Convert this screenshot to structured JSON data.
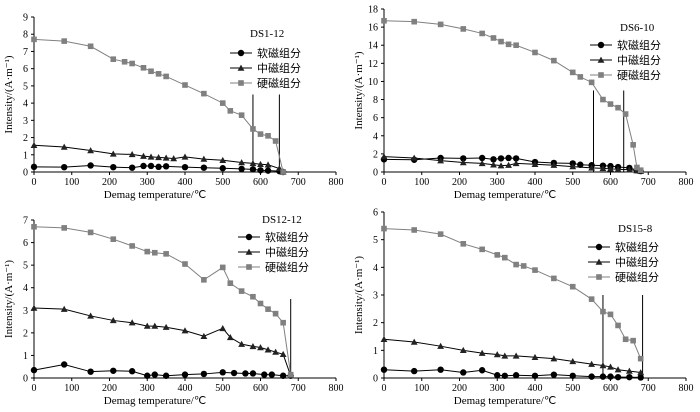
{
  "chart_data": [
    {
      "type": "line",
      "title": "DS1-12",
      "xlabel": "Demag temperature/℃",
      "ylabel": "Intensity/(A·m⁻¹)",
      "xlim": [
        0,
        800
      ],
      "ylim": [
        0,
        9
      ],
      "xticks": [
        "0",
        "100",
        "200",
        "300",
        "400",
        "500",
        "600",
        "700",
        "800"
      ],
      "yticks": [
        "0",
        "1",
        "2",
        "3",
        "4",
        "5",
        "6",
        "7",
        "8",
        "9"
      ],
      "markers_vlines": [
        580,
        650
      ],
      "series": [
        {
          "name": "软磁组分",
          "marker": "circle",
          "x": [
            0,
            80,
            150,
            210,
            260,
            290,
            310,
            330,
            350,
            400,
            450,
            500,
            550,
            580,
            600,
            620,
            650,
            660
          ],
          "y": [
            0.3,
            0.28,
            0.38,
            0.28,
            0.25,
            0.35,
            0.35,
            0.3,
            0.33,
            0.28,
            0.25,
            0.22,
            0.18,
            0.15,
            0.1,
            0.08,
            0.05,
            0
          ]
        },
        {
          "name": "中磁组分",
          "marker": "triangle",
          "x": [
            0,
            80,
            150,
            210,
            260,
            290,
            310,
            330,
            350,
            370,
            400,
            450,
            500,
            550,
            580,
            600,
            620,
            650,
            660
          ],
          "y": [
            1.55,
            1.45,
            1.25,
            1.05,
            1.02,
            0.92,
            0.88,
            0.85,
            0.82,
            0.78,
            0.88,
            0.75,
            0.68,
            0.55,
            0.5,
            0.45,
            0.42,
            0.2,
            0
          ]
        },
        {
          "name": "硬磁组分",
          "marker": "square",
          "x": [
            0,
            80,
            150,
            210,
            240,
            260,
            290,
            310,
            330,
            350,
            400,
            450,
            500,
            520,
            550,
            580,
            600,
            620,
            640,
            660
          ],
          "y": [
            7.7,
            7.6,
            7.3,
            6.55,
            6.4,
            6.3,
            6.05,
            5.85,
            5.7,
            5.55,
            5.05,
            4.55,
            4.0,
            3.55,
            3.3,
            2.5,
            2.2,
            2.1,
            1.8,
            0
          ]
        }
      ]
    },
    {
      "type": "line",
      "title": "DS6-10",
      "xlabel": "Demag temperature/℃",
      "ylabel": "Intensity/(A·m⁻¹)",
      "xlim": [
        0,
        800
      ],
      "ylim": [
        0,
        18
      ],
      "xticks": [
        "0",
        "100",
        "200",
        "300",
        "400",
        "500",
        "600",
        "700",
        "800"
      ],
      "yticks": [
        "0",
        "2",
        "4",
        "6",
        "8",
        "10",
        "12",
        "14",
        "16",
        "18"
      ],
      "markers_vlines": [
        555,
        635
      ],
      "series": [
        {
          "name": "软磁组分",
          "marker": "circle",
          "x": [
            0,
            80,
            150,
            210,
            260,
            290,
            310,
            330,
            350,
            400,
            450,
            500,
            520,
            550,
            580,
            600,
            620,
            650,
            670,
            680
          ],
          "y": [
            1.4,
            1.35,
            1.55,
            1.5,
            1.55,
            1.4,
            1.5,
            1.55,
            1.5,
            1.1,
            1.0,
            0.95,
            0.8,
            0.75,
            0.7,
            0.65,
            0.55,
            0.45,
            0.2,
            0.1
          ]
        },
        {
          "name": "中磁组分",
          "marker": "triangle",
          "x": [
            0,
            80,
            150,
            210,
            260,
            290,
            310,
            330,
            350,
            400,
            450,
            500,
            550,
            580,
            600,
            620,
            650,
            670,
            680
          ],
          "y": [
            1.7,
            1.55,
            1.25,
            1.05,
            0.95,
            0.8,
            0.7,
            0.75,
            0.95,
            0.85,
            0.75,
            0.6,
            0.45,
            0.4,
            0.35,
            0.3,
            0.25,
            0.15,
            0.1
          ]
        },
        {
          "name": "硬磁组分",
          "marker": "square",
          "x": [
            0,
            80,
            150,
            210,
            260,
            290,
            310,
            330,
            350,
            400,
            450,
            500,
            520,
            550,
            580,
            600,
            620,
            640,
            660,
            670,
            680
          ],
          "y": [
            16.7,
            16.6,
            16.3,
            15.8,
            15.3,
            14.8,
            14.4,
            14.1,
            14.0,
            13.2,
            12.3,
            11.0,
            10.5,
            9.9,
            8.0,
            7.5,
            7.1,
            6.4,
            3.0,
            0.5,
            0.2
          ]
        }
      ]
    },
    {
      "type": "line",
      "title": "DS12-12",
      "xlabel": "Demag temperature/℃",
      "ylabel": "Intensity/(A·m⁻¹)",
      "xlim": [
        0,
        800
      ],
      "ylim": [
        0,
        7
      ],
      "xticks": [
        "0",
        "100",
        "200",
        "300",
        "400",
        "500",
        "600",
        "700",
        "800"
      ],
      "yticks": [
        "0",
        "1",
        "2",
        "3",
        "4",
        "5",
        "6",
        "7"
      ],
      "markers_vlines": [
        680
      ],
      "series": [
        {
          "name": "软磁组分",
          "marker": "circle",
          "x": [
            0,
            80,
            150,
            210,
            260,
            300,
            320,
            350,
            400,
            450,
            500,
            530,
            560,
            580,
            610,
            630,
            660,
            680
          ],
          "y": [
            0.35,
            0.6,
            0.28,
            0.32,
            0.3,
            0.1,
            0.15,
            0.1,
            0.15,
            0.18,
            0.25,
            0.22,
            0.2,
            0.2,
            0.15,
            0.15,
            0.1,
            0.1
          ]
        },
        {
          "name": "中磁组分",
          "marker": "triangle",
          "x": [
            0,
            80,
            150,
            210,
            260,
            300,
            320,
            350,
            400,
            450,
            500,
            520,
            550,
            580,
            600,
            620,
            640,
            660,
            680
          ],
          "y": [
            3.1,
            3.05,
            2.75,
            2.55,
            2.45,
            2.3,
            2.3,
            2.25,
            2.1,
            1.85,
            2.2,
            1.8,
            1.5,
            1.4,
            1.35,
            1.25,
            1.15,
            1.05,
            0.1
          ]
        },
        {
          "name": "硬磁组分",
          "marker": "square",
          "x": [
            0,
            80,
            150,
            210,
            260,
            300,
            320,
            350,
            400,
            450,
            500,
            520,
            550,
            580,
            600,
            620,
            640,
            660,
            680
          ],
          "y": [
            6.7,
            6.65,
            6.45,
            6.15,
            5.85,
            5.6,
            5.55,
            5.5,
            5.05,
            4.35,
            4.9,
            4.2,
            3.85,
            3.6,
            3.3,
            3.05,
            2.85,
            2.45,
            0.15
          ]
        }
      ]
    },
    {
      "type": "line",
      "title": "DS15-8",
      "xlabel": "Demag temperature/℃",
      "ylabel": "Intensity/(A·m⁻¹)",
      "xlim": [
        0,
        800
      ],
      "ylim": [
        0,
        6
      ],
      "xticks": [
        "0",
        "100",
        "200",
        "300",
        "400",
        "500",
        "600",
        "700",
        "800"
      ],
      "yticks": [
        "0",
        "1",
        "2",
        "3",
        "4",
        "5",
        "6"
      ],
      "markers_vlines": [
        580,
        685
      ],
      "series": [
        {
          "name": "软磁组分",
          "marker": "circle",
          "x": [
            0,
            80,
            150,
            210,
            260,
            300,
            320,
            350,
            400,
            450,
            500,
            550,
            580,
            600,
            620,
            650,
            680
          ],
          "y": [
            0.3,
            0.25,
            0.3,
            0.2,
            0.28,
            0.1,
            0.08,
            0.1,
            0.08,
            0.12,
            0.08,
            0.05,
            0.05,
            0.05,
            0.03,
            0.03,
            0.02
          ]
        },
        {
          "name": "中磁组分",
          "marker": "triangle",
          "x": [
            0,
            80,
            150,
            210,
            260,
            300,
            320,
            350,
            400,
            450,
            500,
            550,
            580,
            600,
            620,
            650,
            680
          ],
          "y": [
            1.4,
            1.3,
            1.15,
            1.0,
            0.9,
            0.85,
            0.8,
            0.8,
            0.75,
            0.7,
            0.6,
            0.5,
            0.45,
            0.4,
            0.3,
            0.25,
            0.2
          ]
        },
        {
          "name": "硬磁组分",
          "marker": "square",
          "x": [
            0,
            80,
            150,
            210,
            260,
            300,
            320,
            350,
            370,
            400,
            450,
            500,
            550,
            580,
            600,
            620,
            640,
            660,
            680
          ],
          "y": [
            5.4,
            5.35,
            5.2,
            4.85,
            4.65,
            4.45,
            4.35,
            4.1,
            4.05,
            3.9,
            3.6,
            3.3,
            2.85,
            2.4,
            2.3,
            1.9,
            1.4,
            1.35,
            0.7
          ]
        }
      ]
    }
  ]
}
